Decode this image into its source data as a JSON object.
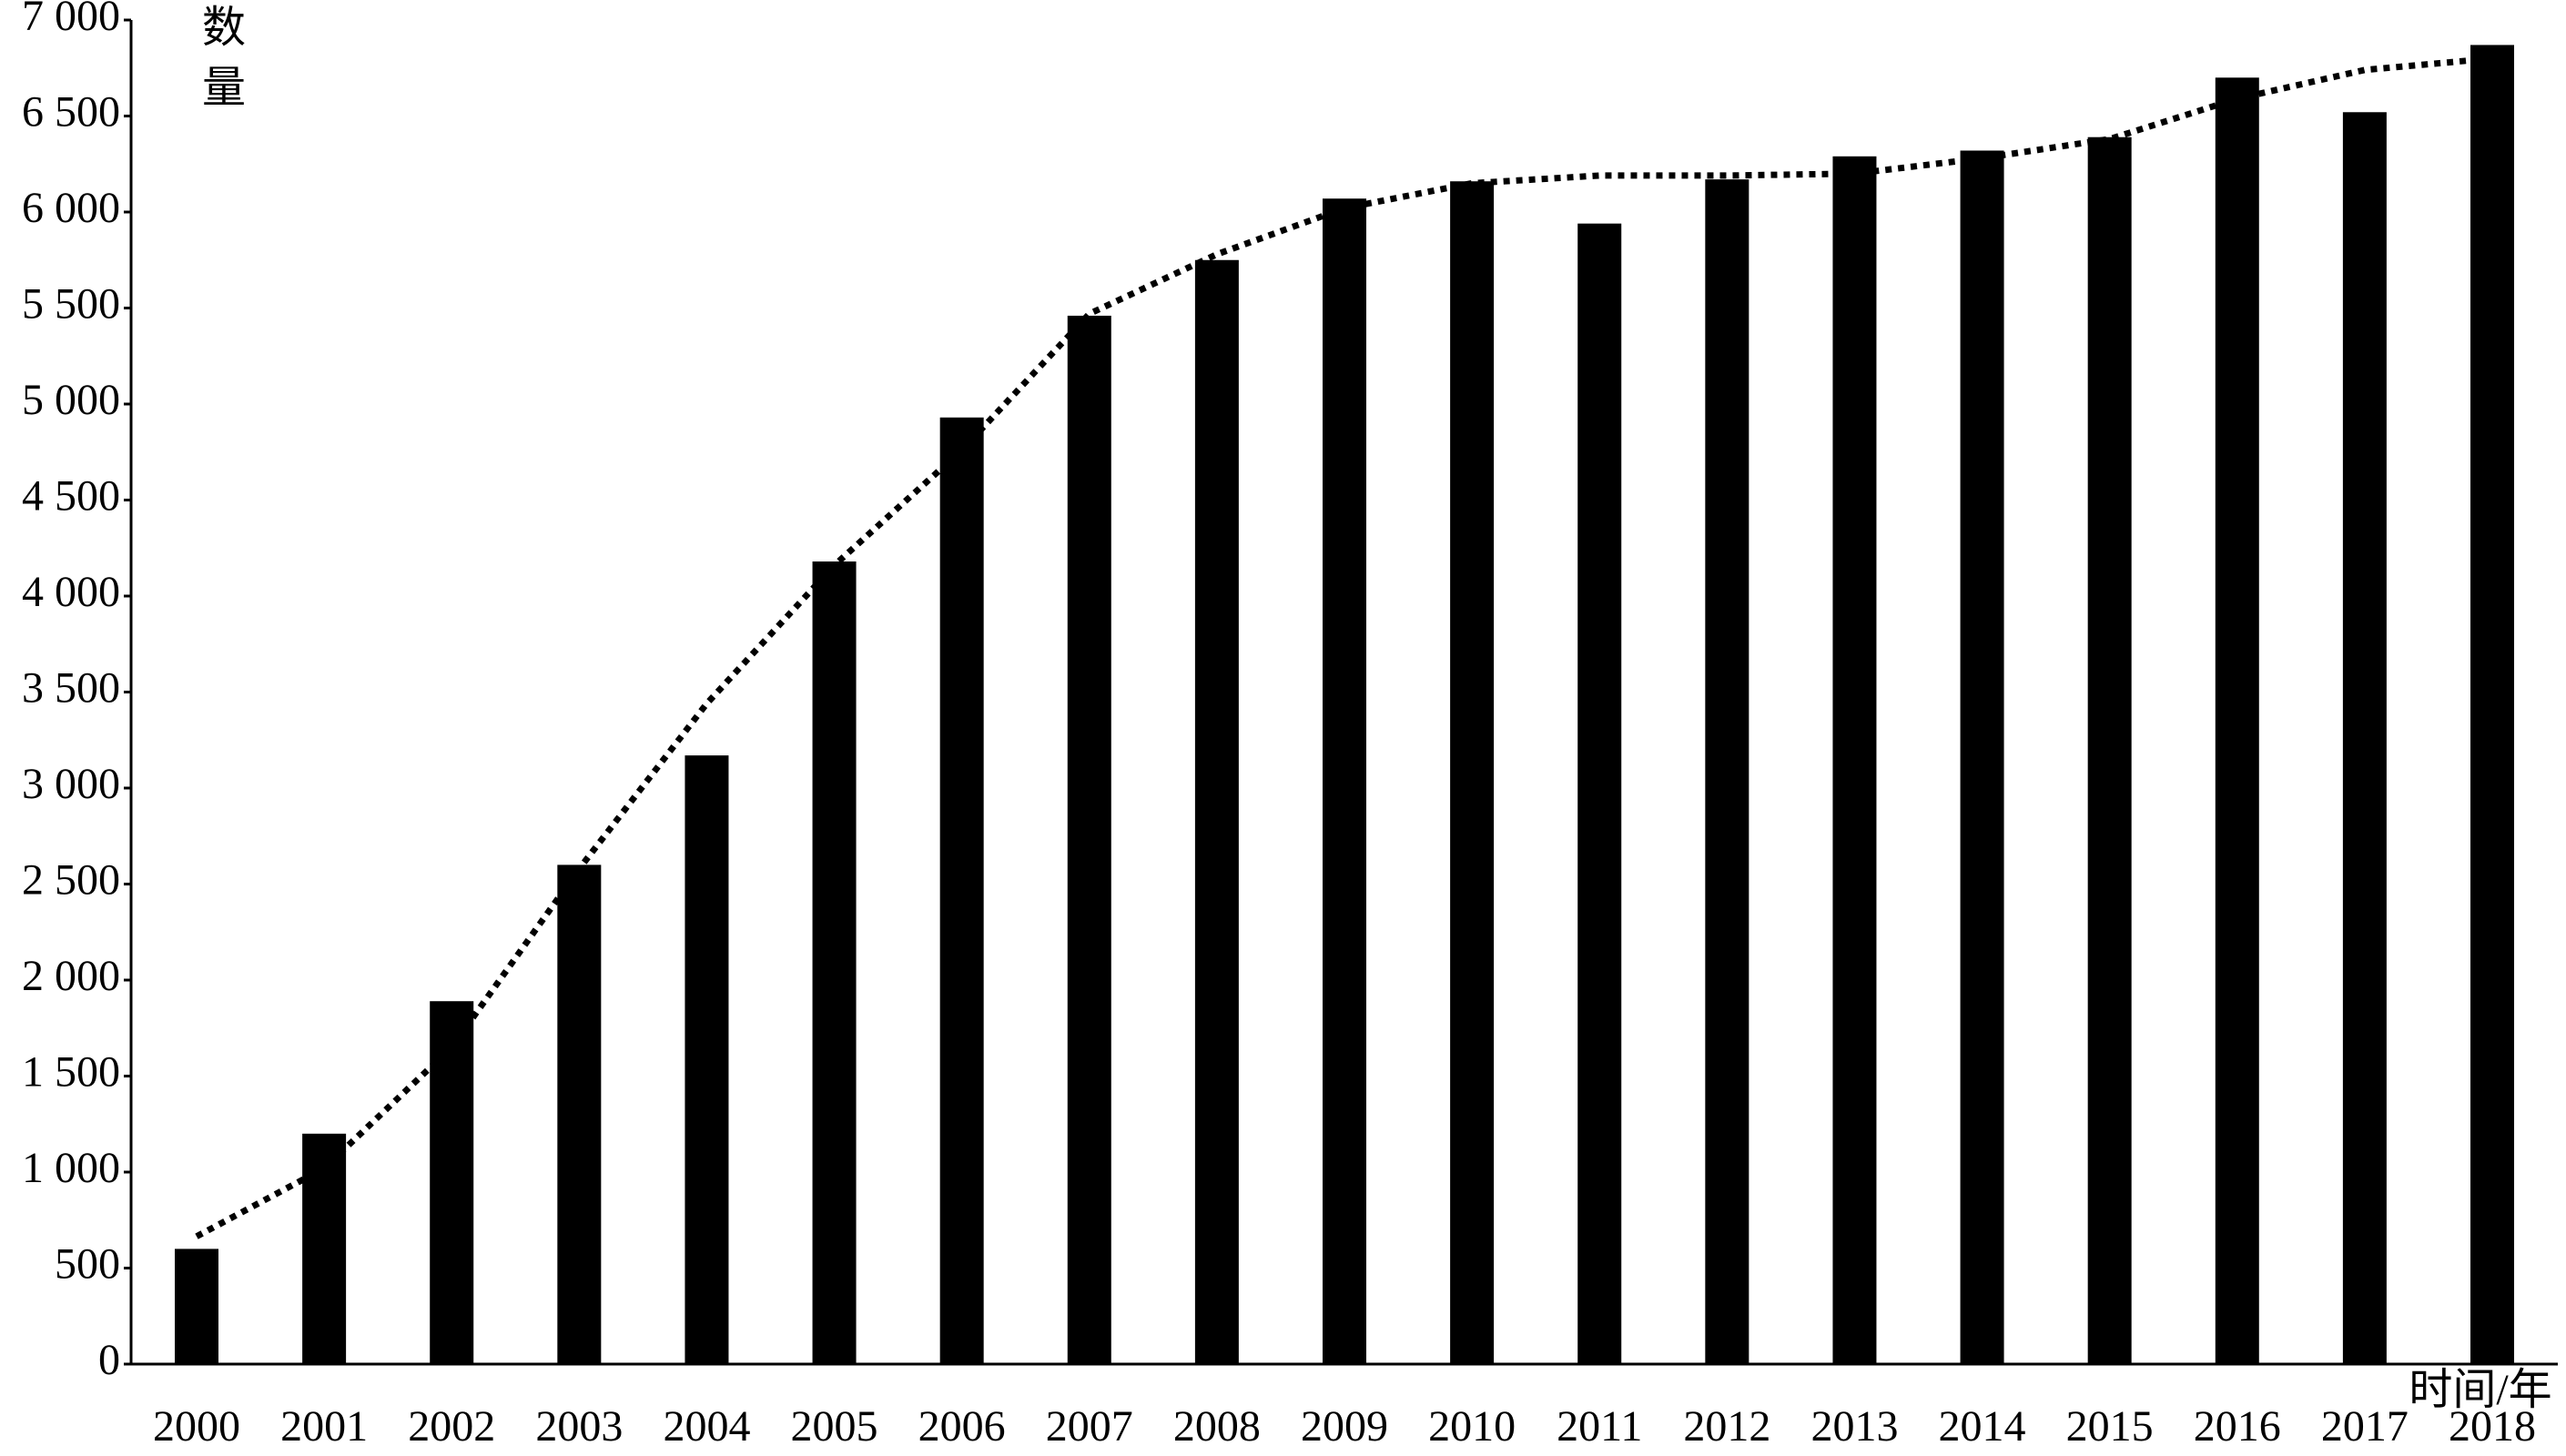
{
  "chart_data": {
    "type": "bar",
    "x_label": "时间/年",
    "y_label": "数量",
    "categories": [
      "2000",
      "2001",
      "2002",
      "2003",
      "2004",
      "2005",
      "2006",
      "2007",
      "2008",
      "2009",
      "2010",
      "2011",
      "2012",
      "2013",
      "2014",
      "2015",
      "2016",
      "2017",
      "2018"
    ],
    "series": [
      {
        "type": "bar",
        "color": "#000000",
        "values": [
          600,
          1200,
          1890,
          2600,
          3170,
          4180,
          4930,
          5460,
          5750,
          6070,
          6160,
          5940,
          6170,
          6290,
          6320,
          6390,
          6700,
          6520,
          6870
        ]
      },
      {
        "type": "line",
        "style": "dotted",
        "color": "#000000",
        "values": [
          665,
          1020,
          1650,
          2580,
          3440,
          4160,
          4760,
          5470,
          5780,
          6020,
          6150,
          6190,
          6190,
          6200,
          6280,
          6380,
          6590,
          6740,
          6800
        ]
      }
    ],
    "ylim": [
      0,
      7000
    ],
    "yticks": [
      0,
      500,
      {
        "value": 1000,
        "label": "1 000"
      },
      {
        "value": 1500,
        "label": "1 500"
      },
      {
        "value": 2000,
        "label": "2 000"
      },
      {
        "value": 2500,
        "label": "2 500"
      },
      {
        "value": 3000,
        "label": "3 000"
      },
      {
        "value": 3500,
        "label": "3 500"
      },
      {
        "value": 4000,
        "label": "4 000"
      },
      {
        "value": 4500,
        "label": "4 500"
      },
      {
        "value": 5000,
        "label": "5 000"
      },
      {
        "value": 5500,
        "label": "5 500"
      },
      {
        "value": 6000,
        "label": "6 000"
      },
      {
        "value": 6500,
        "label": "6 500"
      },
      {
        "value": 7000,
        "label": "7 000"
      }
    ],
    "grid": false
  }
}
